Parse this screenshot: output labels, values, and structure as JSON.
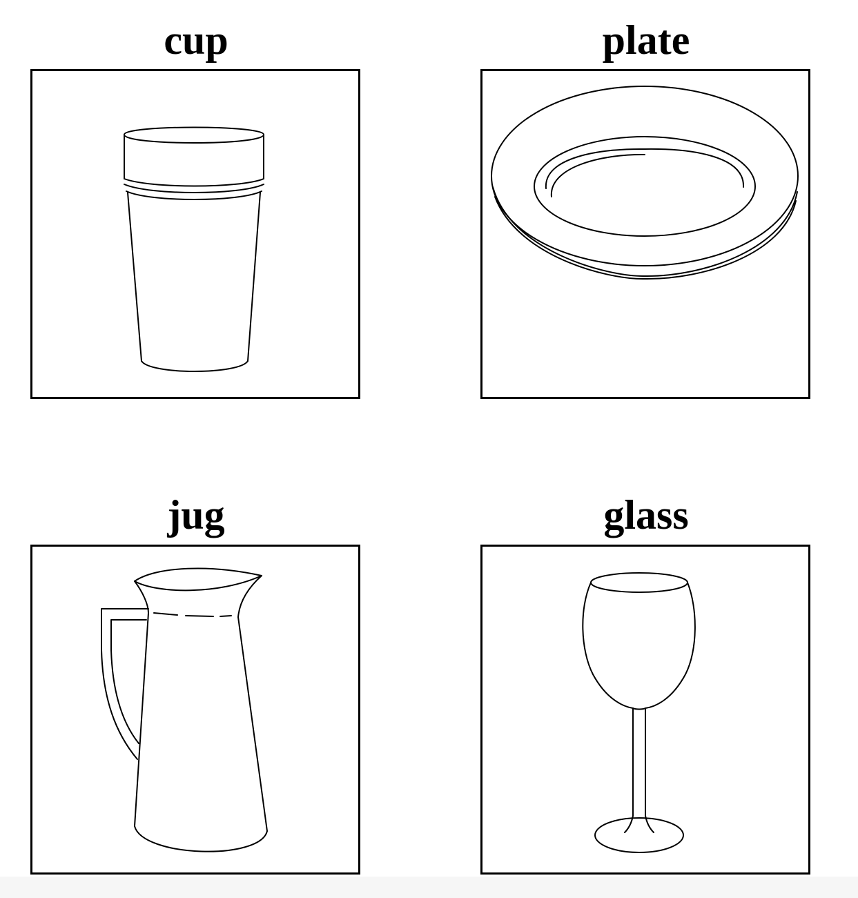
{
  "cards": [
    {
      "label": "cup",
      "icon": "cup-icon"
    },
    {
      "label": "plate",
      "icon": "plate-icon"
    },
    {
      "label": "jug",
      "icon": "jug-icon"
    },
    {
      "label": "glass",
      "icon": "wine-glass-icon"
    }
  ],
  "colors": {
    "line": "#000000",
    "background": "#ffffff"
  }
}
